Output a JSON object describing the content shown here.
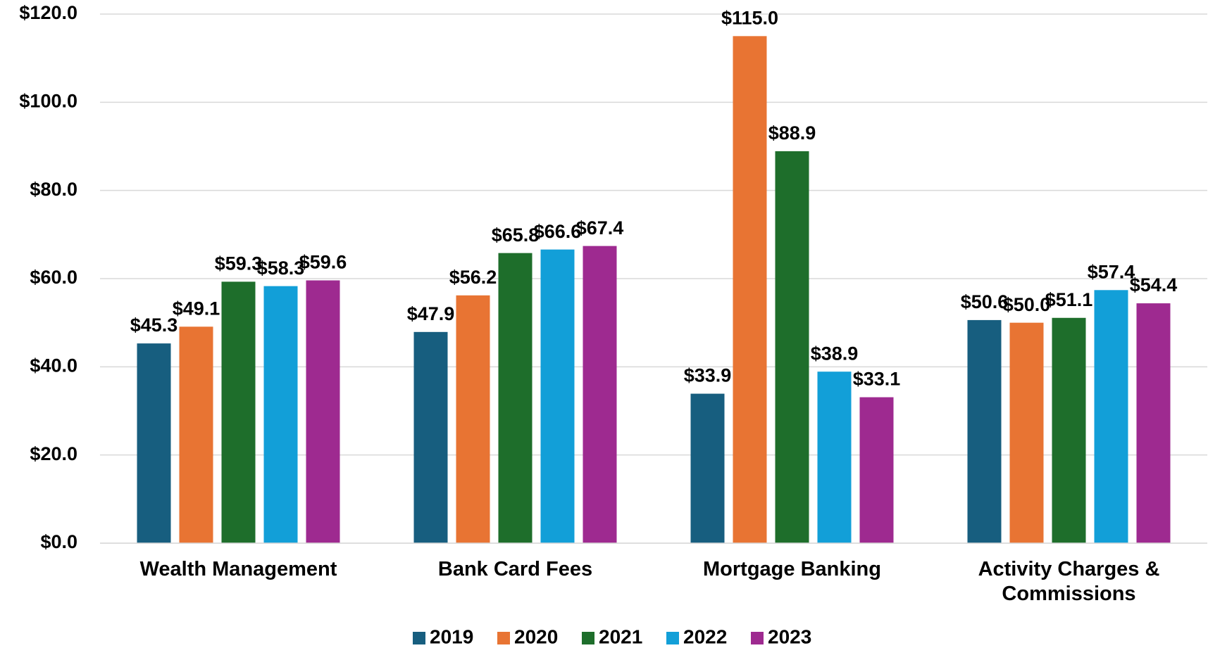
{
  "chart_data": {
    "type": "bar",
    "categories": [
      "Wealth Management",
      "Bank Card Fees",
      "Mortgage Banking",
      "Activity Charges & Commissions"
    ],
    "series": [
      {
        "name": "2019",
        "color": "#175e7f",
        "values": [
          45.3,
          47.9,
          33.9,
          50.6
        ],
        "value_labels": [
          "$45.3",
          "$47.9",
          "$33.9",
          "$50.6"
        ]
      },
      {
        "name": "2020",
        "color": "#e87433",
        "values": [
          49.1,
          56.2,
          115.0,
          50.0
        ],
        "value_labels": [
          "$49.1",
          "$56.2",
          "$115.0",
          "$50.0"
        ]
      },
      {
        "name": "2021",
        "color": "#1e6e2b",
        "values": [
          59.3,
          65.8,
          88.9,
          51.1
        ],
        "value_labels": [
          "$59.3",
          "$65.8",
          "$88.9",
          "$51.1"
        ]
      },
      {
        "name": "2022",
        "color": "#129fd8",
        "values": [
          58.3,
          66.6,
          38.9,
          57.4
        ],
        "value_labels": [
          "$58.3",
          "$66.6",
          "$38.9",
          "$57.4"
        ]
      },
      {
        "name": "2023",
        "color": "#9e2a90",
        "values": [
          59.6,
          67.4,
          33.1,
          54.4
        ],
        "value_labels": [
          "$59.6",
          "$67.4",
          "$33.1",
          "$54.4"
        ]
      }
    ],
    "ylim": [
      0,
      120
    ],
    "yticks": [
      {
        "value": 0,
        "label": "$0.0"
      },
      {
        "value": 20,
        "label": "$20.0"
      },
      {
        "value": 40,
        "label": "$40.0"
      },
      {
        "value": 60,
        "label": "$60.0"
      },
      {
        "value": 80,
        "label": "$80.0"
      },
      {
        "value": 100,
        "label": "$100.0"
      },
      {
        "value": 120,
        "label": "$120.0"
      }
    ],
    "grid": true,
    "legend": "bottom"
  }
}
